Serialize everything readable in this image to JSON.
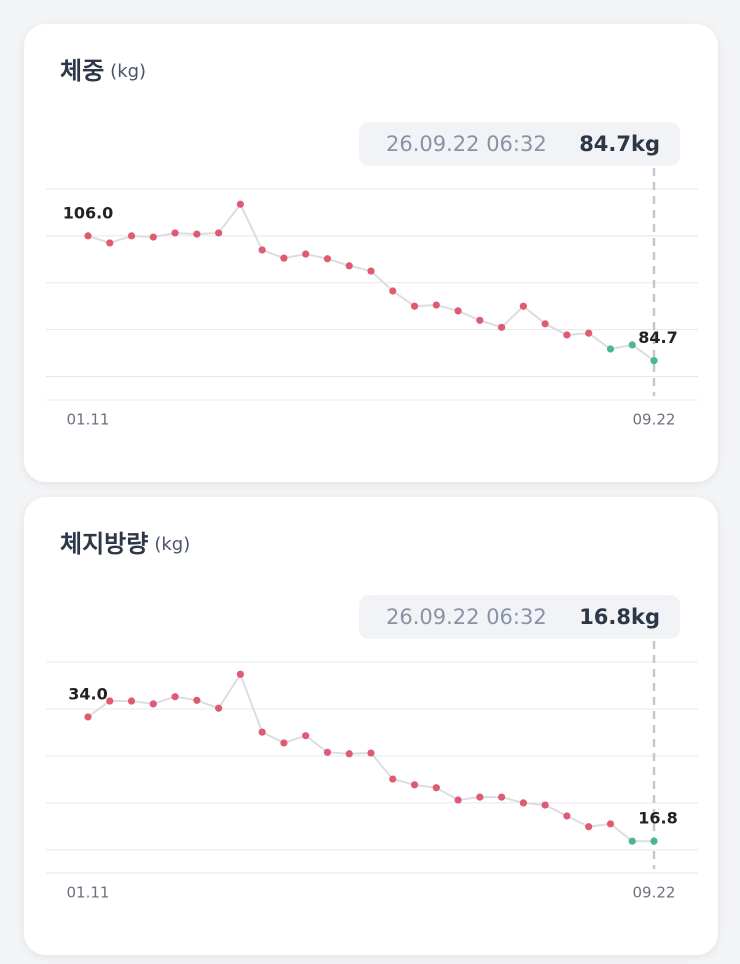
{
  "chart_data": [
    {
      "type": "line",
      "title": "체중",
      "unit": "(kg)",
      "tooltip": {
        "time": "26.09.22 06:32",
        "value": "84.7kg"
      },
      "categories": [
        "01.11",
        null,
        null,
        null,
        null,
        null,
        null,
        null,
        null,
        null,
        null,
        null,
        null,
        null,
        null,
        null,
        null,
        null,
        null,
        null,
        null,
        null,
        null,
        null,
        null,
        null,
        "09.22"
      ],
      "values": [
        106.0,
        104.8,
        106.0,
        105.8,
        106.5,
        106.3,
        106.5,
        111.4,
        103.6,
        102.2,
        102.9,
        102.1,
        100.9,
        100.0,
        96.6,
        94.0,
        94.2,
        93.2,
        91.6,
        90.4,
        94.0,
        91.0,
        89.1,
        89.4,
        86.7,
        87.4,
        84.7
      ],
      "value_labels": [
        "106.0",
        null,
        null,
        null,
        null,
        null,
        null,
        null,
        null,
        null,
        null,
        null,
        null,
        null,
        null,
        null,
        null,
        null,
        null,
        null,
        null,
        null,
        null,
        null,
        null,
        null,
        "84.7"
      ],
      "colors": [
        "#e05a73",
        "#e05a73",
        "#e05a73",
        "#e05a73",
        "#e05a73",
        "#e05a73",
        "#e05a73",
        "#e05a73",
        "#e05a73",
        "#e05a73",
        "#e05a73",
        "#e05a73",
        "#e05a73",
        "#e05a73",
        "#e05a73",
        "#e05a73",
        "#e05a73",
        "#e05a73",
        "#e05a73",
        "#e05a73",
        "#e05a73",
        "#e05a73",
        "#e05a73",
        "#e05a73",
        "#4cb88a",
        "#4cb88a",
        "#4cb88a"
      ],
      "ylim": [
        78,
        114
      ],
      "yticks": [
        82,
        90,
        98,
        106,
        114
      ],
      "grid": true
    },
    {
      "type": "line",
      "title": "체지방량",
      "unit": "(kg)",
      "tooltip": {
        "time": "26.09.22 06:32",
        "value": "16.8kg"
      },
      "categories": [
        "01.11",
        null,
        null,
        null,
        null,
        null,
        null,
        null,
        null,
        null,
        null,
        null,
        null,
        null,
        null,
        null,
        null,
        null,
        null,
        null,
        null,
        null,
        null,
        null,
        null,
        null,
        "09.22"
      ],
      "values": [
        34.0,
        36.2,
        36.2,
        35.8,
        36.8,
        36.3,
        35.2,
        39.9,
        31.9,
        30.4,
        31.4,
        29.1,
        28.9,
        29.0,
        25.4,
        24.6,
        24.2,
        22.5,
        22.9,
        22.9,
        22.1,
        21.8,
        20.3,
        18.8,
        19.2,
        16.8,
        16.8
      ],
      "value_labels": [
        "34.0",
        null,
        null,
        null,
        null,
        null,
        null,
        null,
        null,
        null,
        null,
        null,
        null,
        null,
        null,
        null,
        null,
        null,
        null,
        null,
        null,
        null,
        null,
        null,
        null,
        null,
        "16.8"
      ],
      "colors": [
        "#e05a73",
        "#e05a73",
        "#e05a73",
        "#e05a73",
        "#e05a73",
        "#e05a73",
        "#e05a73",
        "#e05a73",
        "#e05a73",
        "#e05a73",
        "#e05a73",
        "#e05a73",
        "#e05a73",
        "#e05a73",
        "#e05a73",
        "#e05a73",
        "#e05a73",
        "#e05a73",
        "#e05a73",
        "#e05a73",
        "#e05a73",
        "#e05a73",
        "#e05a73",
        "#e05a73",
        "#e05a73",
        "#4cb88a",
        "#4cb88a"
      ],
      "ylim": [
        12.4,
        41.6
      ],
      "yticks": [
        15.6,
        22.1,
        28.6,
        35.1,
        41.6
      ],
      "grid": true
    }
  ]
}
